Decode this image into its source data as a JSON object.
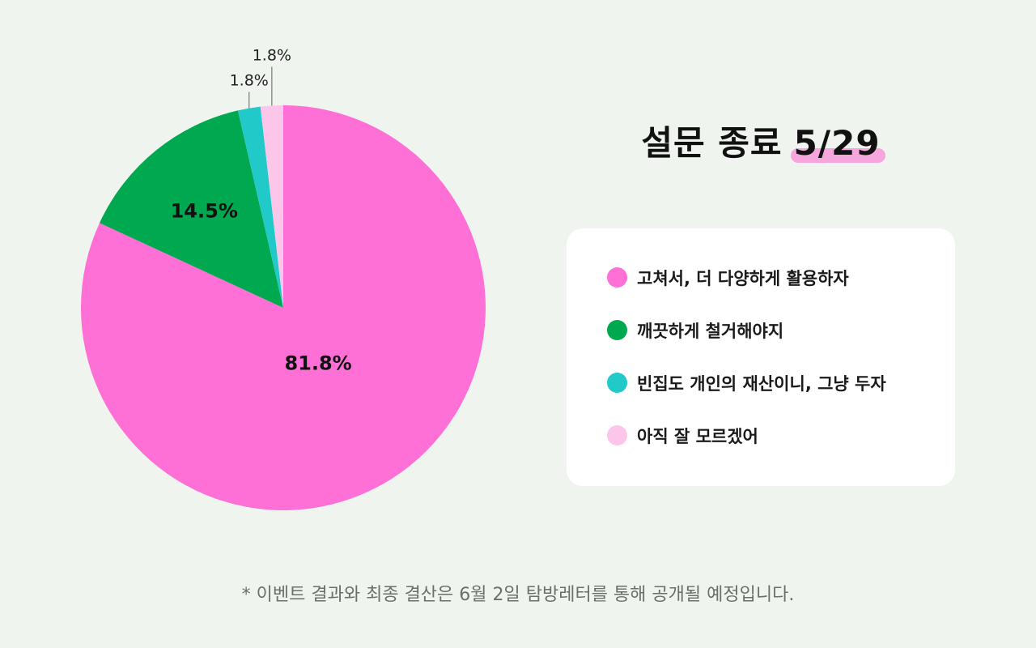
{
  "chart_data": {
    "type": "pie",
    "slices": [
      {
        "label": "고쳐서, 더 다양하게 활용하자",
        "value": 81.8,
        "value_label": "81.8%",
        "color": "#ff70d6"
      },
      {
        "label": "깨끗하게 철거해야지",
        "value": 14.5,
        "value_label": "14.5%",
        "color": "#00a84f"
      },
      {
        "label": "빈집도 개인의 재산이니, 그냥 두자",
        "value": 1.8,
        "value_label": "1.8%",
        "color": "#22c9c9"
      },
      {
        "label": "아직 잘 모르겠어",
        "value": 1.8,
        "value_label": "1.8%",
        "color": "#fbc6e9"
      }
    ]
  },
  "title": {
    "text": "설문 종료",
    "date": "5/29",
    "highlight_color": "#f6a6dd"
  },
  "legend": {
    "items": [
      {
        "label": "고쳐서, 더 다양하게 활용하자",
        "color": "#ff70d6"
      },
      {
        "label": "깨끗하게 철거해야지",
        "color": "#00a84f"
      },
      {
        "label": "빈집도 개인의 재산이니, 그냥 두자",
        "color": "#22c9c9"
      },
      {
        "label": "아직 잘 모르겠어",
        "color": "#fbc6e9"
      }
    ]
  },
  "footnote": "* 이벤트 결과와 최종 결산은 6월 2일 탐방레터를 통해 공개될 예정입니다.",
  "colors": {
    "background": "#f0f4ef",
    "card": "#ffffff",
    "footnote_text": "#6b6f6a"
  }
}
